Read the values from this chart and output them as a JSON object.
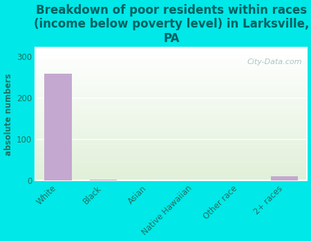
{
  "title": "Breakdown of poor residents within races\n(income below poverty level) in Larksville,\nPA",
  "categories": [
    "White",
    "Black",
    "Asian",
    "Native Hawaiian",
    "Other race",
    "2+ races"
  ],
  "values": [
    258,
    2,
    0,
    0,
    0,
    11
  ],
  "bar_color": "#c4a8d0",
  "ylabel": "absolute numbers",
  "ylim": [
    0,
    320
  ],
  "yticks": [
    0,
    100,
    200,
    300
  ],
  "background_color": "#00e8e8",
  "plot_bg_color1": "#e8f5e0",
  "plot_bg_color2": "#f5fff5",
  "watermark": "City-Data.com",
  "title_fontsize": 12,
  "title_color": "#006060",
  "label_fontsize": 8.5,
  "tick_label_color": "#207060",
  "ylabel_color": "#207060"
}
